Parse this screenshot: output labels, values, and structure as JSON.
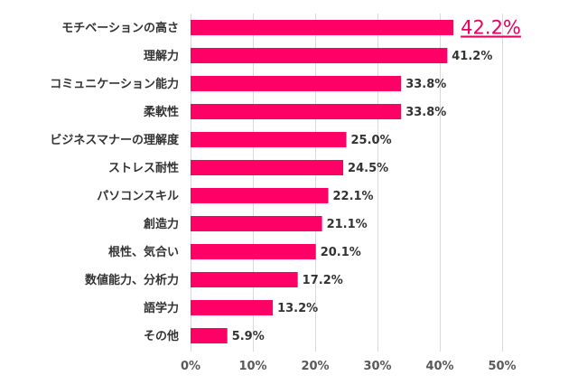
{
  "chart_data": {
    "type": "bar",
    "orientation": "horizontal",
    "categories": [
      "モチベーションの高さ",
      "理解力",
      "コミュニケーション能力",
      "柔軟性",
      "ビジネスマナーの理解度",
      "ストレス耐性",
      "パソコンスキル",
      "創造力",
      "根性、気合い",
      "数値能力、分析力",
      "語学力",
      "その他"
    ],
    "values": [
      42.2,
      41.2,
      33.8,
      33.8,
      25.0,
      24.5,
      22.1,
      21.1,
      20.1,
      17.2,
      13.2,
      5.9
    ],
    "value_labels": [
      "42.2%",
      "41.2%",
      "33.8%",
      "33.8%",
      "25.0%",
      "24.5%",
      "22.1%",
      "21.1%",
      "20.1%",
      "17.2%",
      "13.2%",
      "5.9%"
    ],
    "highlight_index": 0,
    "xlim": [
      0,
      50
    ],
    "xticks": [
      0,
      10,
      20,
      30,
      40,
      50
    ],
    "xtick_labels": [
      "0%",
      "10%",
      "20%",
      "30%",
      "40%",
      "50%"
    ],
    "grid": true,
    "bar_color": "#ff0066",
    "highlight_label_color": "#e6005f"
  }
}
